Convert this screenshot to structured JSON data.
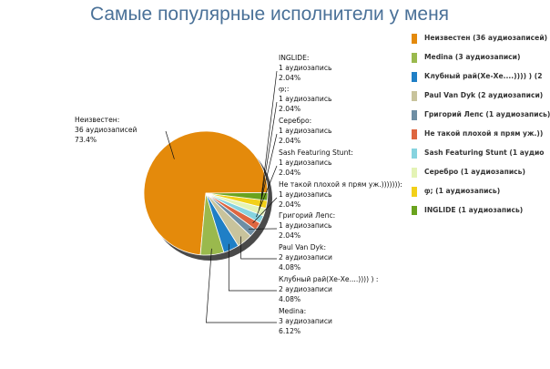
{
  "chart_data": {
    "type": "pie",
    "title": "Самые популярные исполнители у меня",
    "slices": [
      {
        "name": "Неизвестен",
        "lines": [
          "Неизвестен:",
          "36 аудиозаписей",
          "73.4%"
        ],
        "legend": "Неизвестен (36 аудиозаписей)",
        "count": 36,
        "percent": 73.4,
        "color": "#e48a0b"
      },
      {
        "name": "Medina",
        "lines": [
          "Medina:",
          "3 аудиозаписи",
          "6.12%"
        ],
        "legend": "Medina (3 аудиозаписи)",
        "count": 3,
        "percent": 6.12,
        "color": "#9ab94d"
      },
      {
        "name": "Клубный рай(Хе-Хе....)))) )",
        "lines": [
          "Клубный рай(Хе-Хе....)))) ) :",
          "2 аудиозаписи",
          "4.08%"
        ],
        "legend": "Клубный рай(Хе-Хе....)))) )  (2",
        "count": 2,
        "percent": 4.08,
        "color": "#1f7fc6"
      },
      {
        "name": "Paul Van Dyk",
        "lines": [
          "Paul Van Dyk:",
          "2 аудиозаписи",
          "4.08%"
        ],
        "legend": "Paul Van Dyk (2 аудиозаписи)",
        "count": 2,
        "percent": 4.08,
        "color": "#c8c39c"
      },
      {
        "name": "Григорий Лепс",
        "lines": [
          "Григорий Лепс:",
          "1 аудиозапись",
          "2.04%"
        ],
        "legend": "Григорий Лепс (1 аудиозапись)",
        "count": 1,
        "percent": 2.04,
        "color": "#6e8ea4"
      },
      {
        "name": "Не такой плохой я прям уж.)))))))",
        "lines": [
          "Не такой плохой я прям уж.))))))):",
          "1 аудиозапись",
          "2.04%"
        ],
        "legend": "Не такой плохой я прям уж.))",
        "count": 1,
        "percent": 2.04,
        "color": "#de6640"
      },
      {
        "name": "Sash Featuring Stunt",
        "lines": [
          "Sash Featuring Stunt:",
          "1 аудиозапись",
          "2.04%"
        ],
        "legend": "Sash Featuring Stunt (1 аудио",
        "count": 1,
        "percent": 2.04,
        "color": "#86d3df"
      },
      {
        "name": "Серебро",
        "lines": [
          "Серебро:",
          "1 аудиозапись",
          "2.04%"
        ],
        "legend": "Серебро (1 аудиозапись)",
        "count": 1,
        "percent": 2.04,
        "color": "#e4f3b5"
      },
      {
        "name": "ჶ;",
        "lines": [
          "ჶ;:",
          "1 аудиозапись",
          "2.04%"
        ],
        "legend": "ჶ; (1 аудиозапись)",
        "count": 1,
        "percent": 2.04,
        "color": "#f2d018"
      },
      {
        "name": "INGLIDE",
        "lines": [
          "INGLIDE:",
          "1 аудиозапись",
          "2.04%"
        ],
        "legend": "INGLIDE (1 аудиозапись)",
        "count": 1,
        "percent": 2.04,
        "color": "#6aa31e"
      }
    ],
    "legend_position": "right"
  }
}
